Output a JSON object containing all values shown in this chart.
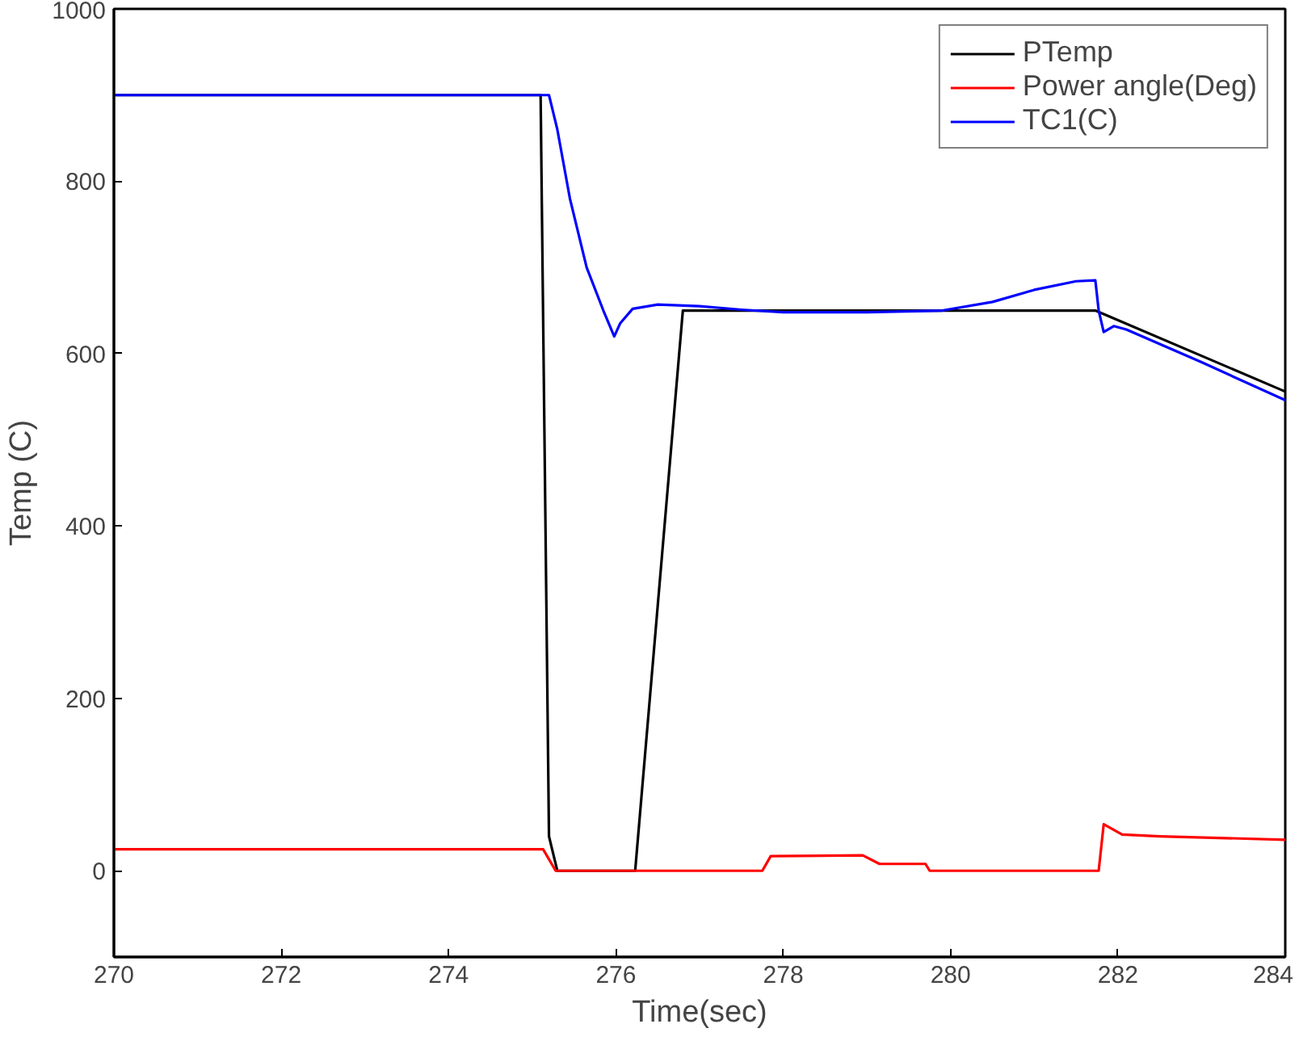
{
  "chart_data": {
    "type": "line",
    "xlabel": "Time(sec)",
    "ylabel": "Temp (C)",
    "xlim": [
      270,
      284
    ],
    "ylim": [
      -100,
      1000
    ],
    "xticks": [
      270,
      272,
      274,
      276,
      278,
      280,
      282,
      284
    ],
    "yticks": [
      0,
      200,
      400,
      600,
      800,
      1000
    ],
    "grid": false,
    "legend": "top right",
    "marker": "none",
    "line_style": "solid",
    "series": [
      {
        "name": "PTemp",
        "color": "#000000",
        "x": [
          270,
          275.1,
          275.2,
          275.3,
          276.23,
          276.8,
          281.73,
          284
        ],
        "values": [
          900,
          900,
          40,
          0,
          0,
          650,
          650,
          556
        ]
      },
      {
        "name": "Power angle(Deg)",
        "color": "#ff0000",
        "x": [
          270,
          275.13,
          275.28,
          277.75,
          277.85,
          278.95,
          279.15,
          279.7,
          279.75,
          281.77,
          281.83,
          282.05,
          282.5,
          284
        ],
        "values": [
          25,
          25,
          0,
          0,
          17,
          18,
          8,
          8,
          0,
          0,
          54,
          42,
          40,
          36
        ]
      },
      {
        "name": "TC1(C)",
        "color": "#0000ff",
        "x": [
          270,
          275.2,
          275.3,
          275.45,
          275.65,
          275.85,
          275.98,
          276.05,
          276.2,
          276.5,
          277,
          277.5,
          278,
          279,
          279.9,
          280.5,
          281,
          281.5,
          281.73,
          281.77,
          281.83,
          281.95,
          282.1,
          283,
          284
        ],
        "values": [
          900,
          900,
          860,
          780,
          700,
          650,
          620,
          635,
          652,
          657,
          655,
          651,
          648,
          648,
          650,
          660,
          674,
          684,
          685,
          650,
          625,
          632,
          628,
          590,
          546
        ]
      }
    ]
  }
}
